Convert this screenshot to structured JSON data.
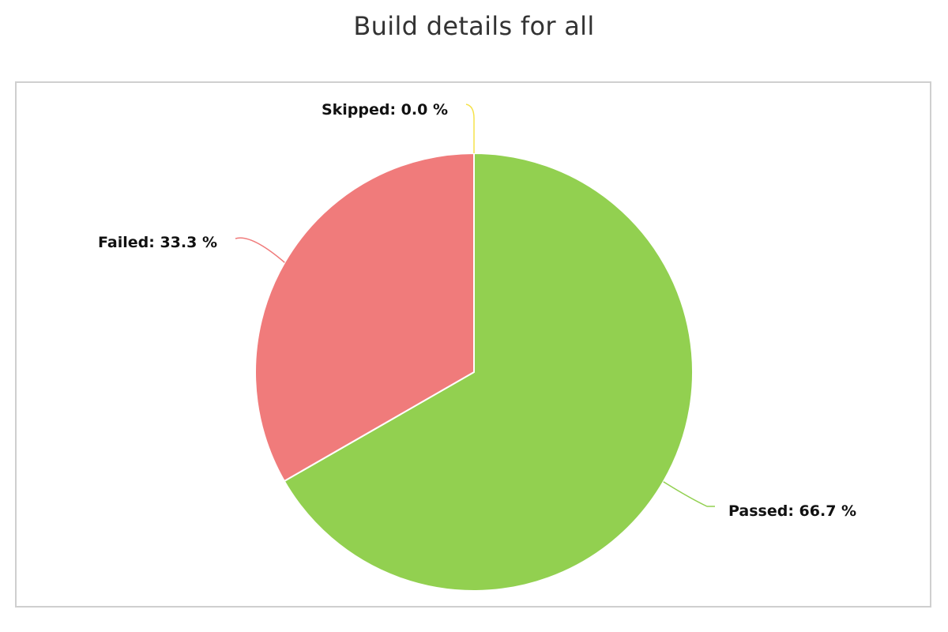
{
  "page": {
    "title": "Build details for all"
  },
  "chart_data": {
    "type": "pie",
    "title": "Build details for all",
    "slices": [
      {
        "name": "Passed",
        "value": 66.7,
        "label": "Passed: 66.7 %",
        "color": "#92d050"
      },
      {
        "name": "Failed",
        "value": 33.3,
        "label": "Failed: 33.3 %",
        "color": "#f07b7b"
      },
      {
        "name": "Skipped",
        "value": 0.0,
        "label": "Skipped: 0.0 %",
        "color": "#f5e24a"
      }
    ],
    "start": "12 o'clock",
    "direction": "clockwise"
  }
}
